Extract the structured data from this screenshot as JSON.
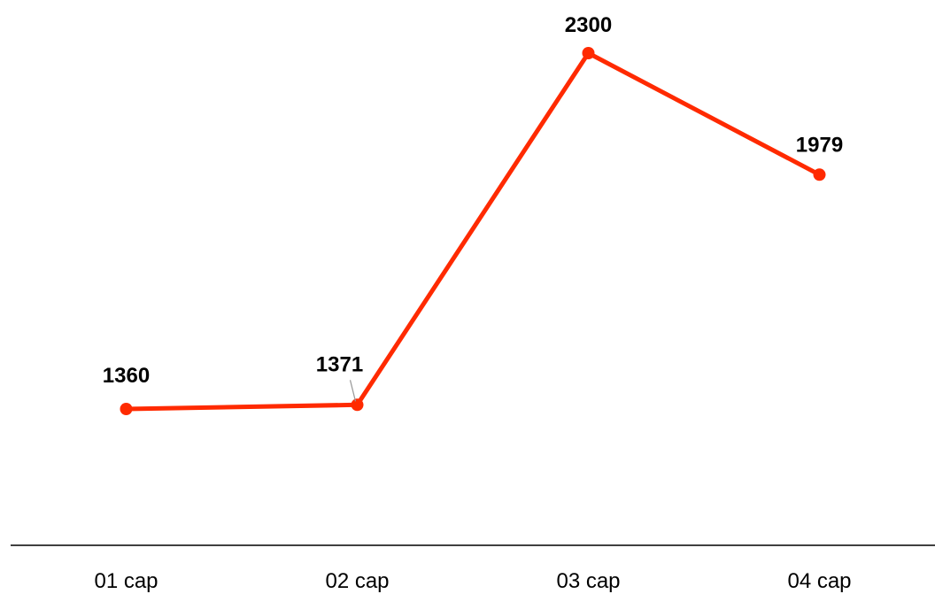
{
  "chart_data": {
    "type": "line",
    "categories": [
      "01 cap",
      "02 cap",
      "03 cap",
      "04 cap"
    ],
    "series": [
      {
        "values": [
          1360,
          1371,
          2300,
          1979
        ],
        "color": "#ff2a00"
      }
    ],
    "axis_color": "#000000",
    "leader_line_color": "#999999",
    "grid": false,
    "legend": "none",
    "y_axis_visible": false
  }
}
